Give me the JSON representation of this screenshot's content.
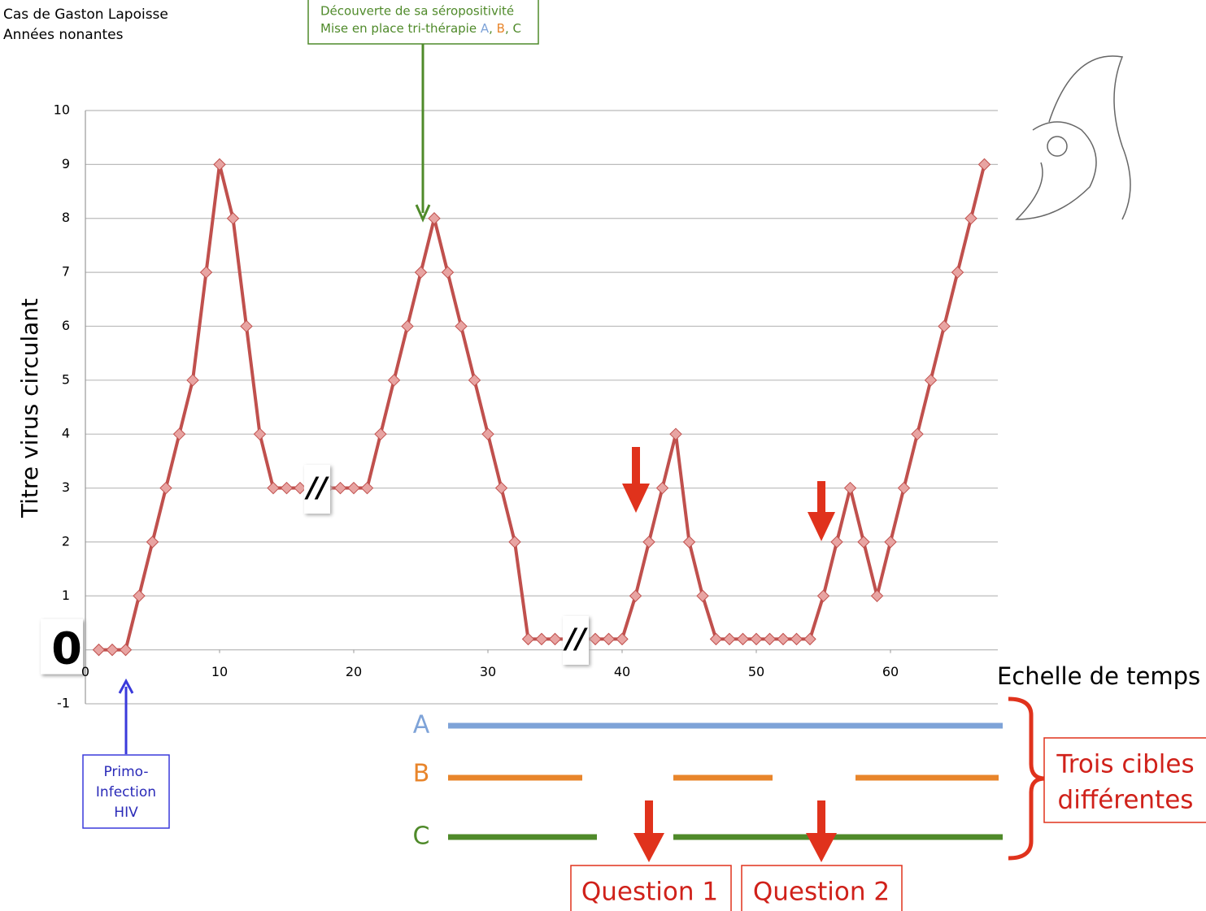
{
  "chart_data": {
    "type": "line",
    "title_lines": [
      "Cas de Gaston Lapoisse",
      "Années nonantes"
    ],
    "y_axis_label": "Titre virus circulant",
    "x_axis_label": "Echelle de temps",
    "x": [
      1,
      2,
      3,
      4,
      5,
      6,
      7,
      8,
      9,
      10,
      11,
      12,
      13,
      14,
      15,
      16,
      18,
      19,
      20,
      21,
      22,
      23,
      24,
      25,
      26,
      27,
      28,
      29,
      30,
      31,
      32,
      33,
      34,
      35,
      38,
      39,
      40,
      41,
      42,
      43,
      44,
      45,
      46,
      47,
      48,
      49,
      50,
      51,
      52,
      53,
      54,
      55,
      56,
      57,
      58,
      59,
      60,
      61,
      62,
      63,
      64,
      65,
      66,
      67
    ],
    "series": [
      {
        "name": "Titre virus circulant",
        "color": "#c0504d",
        "values": [
          0,
          0,
          0,
          1,
          2,
          3,
          4,
          5,
          7,
          9,
          8,
          6,
          4,
          3,
          3,
          3,
          3,
          3,
          3,
          3,
          4,
          5,
          6,
          7,
          8,
          7,
          6,
          5,
          4,
          3,
          2,
          0.2,
          0.2,
          0.2,
          0.2,
          0.2,
          0.2,
          1,
          2,
          3,
          4,
          2,
          1,
          0.2,
          0.2,
          0.2,
          0.2,
          0.2,
          0.2,
          0.2,
          0.2,
          1,
          2,
          3,
          2,
          1,
          2,
          3,
          4,
          5,
          6,
          7,
          8,
          9
        ]
      }
    ],
    "xlim": [
      0,
      68
    ],
    "ylim": [
      -1,
      10
    ],
    "xticks": [
      0,
      10,
      20,
      30,
      40,
      50,
      60
    ],
    "yticks": [
      -1,
      0,
      1,
      2,
      3,
      4,
      5,
      6,
      7,
      8,
      9,
      10
    ],
    "grid": true,
    "break_label": "//",
    "discovery_box": {
      "line1": "Découverte de sa séropositivité",
      "line2": [
        "Mise en place tri-thérapie ",
        "A",
        ", ",
        "B",
        ", ",
        "C"
      ]
    },
    "primo_box": [
      "Primo-",
      "Infection",
      "HIV"
    ],
    "targets": [
      "A",
      "B",
      "C"
    ],
    "targets_box": [
      "Trois cibles",
      "différentes"
    ],
    "questions": [
      "Question 1",
      "Question 2"
    ]
  }
}
